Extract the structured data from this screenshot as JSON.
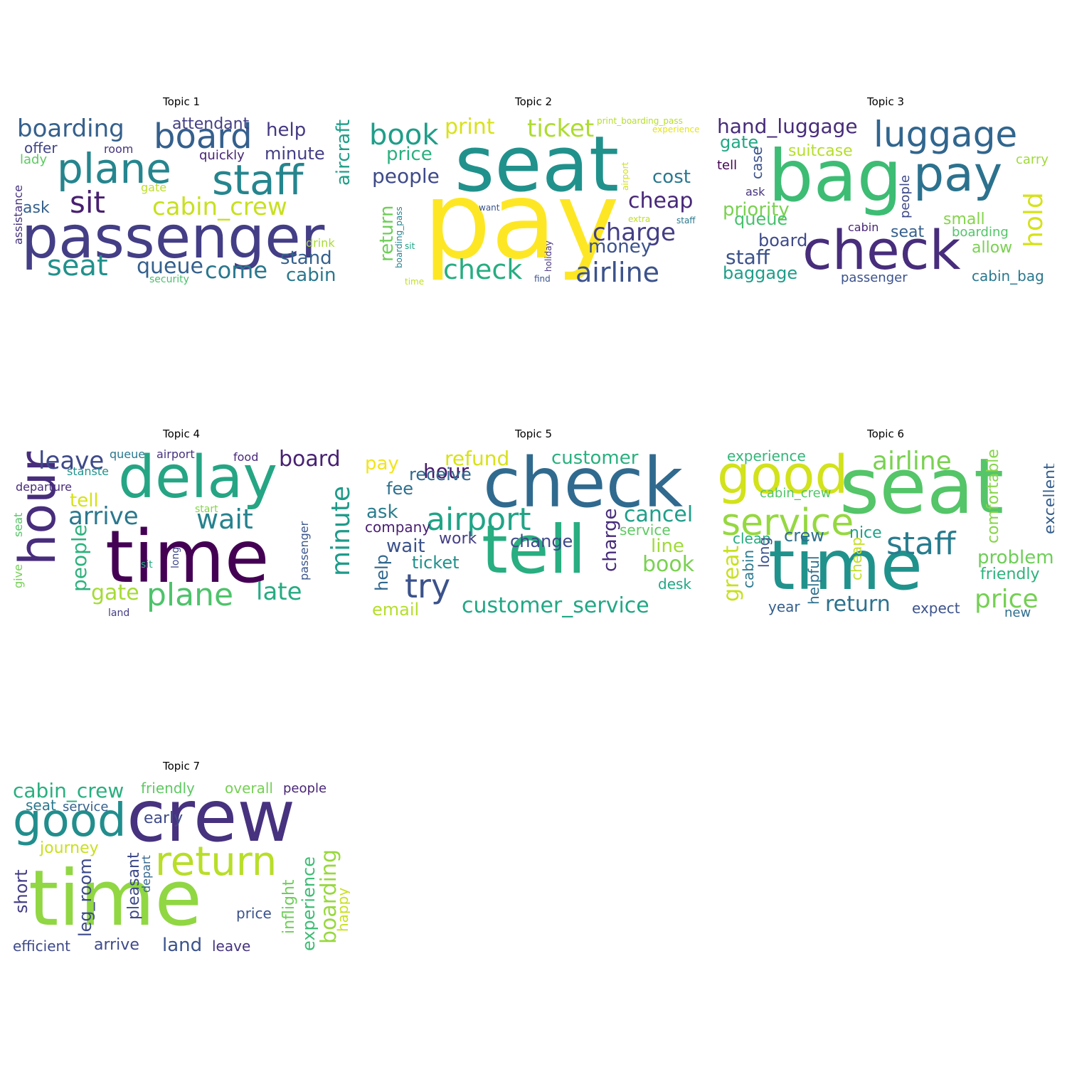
{
  "panels": [
    {
      "title": "Topic 1",
      "words": [
        {
          "text": "passenger",
          "color": "#433e85"
        },
        {
          "text": "plane",
          "color": "#25858e"
        },
        {
          "text": "staff",
          "color": "#25858e"
        },
        {
          "text": "board",
          "color": "#35608d"
        },
        {
          "text": "boarding",
          "color": "#35608d"
        },
        {
          "text": "sit",
          "color": "#481f70"
        },
        {
          "text": "cabin_crew",
          "color": "#c8e020"
        },
        {
          "text": "seat",
          "color": "#21918c"
        },
        {
          "text": "queue",
          "color": "#35608d"
        },
        {
          "text": "come",
          "color": "#2a788e"
        },
        {
          "text": "aircraft",
          "color": "#1f9e89"
        },
        {
          "text": "help",
          "color": "#443983"
        },
        {
          "text": "minute",
          "color": "#433e85"
        },
        {
          "text": "stand",
          "color": "#35608d"
        },
        {
          "text": "cabin",
          "color": "#2a788e"
        },
        {
          "text": "attendant",
          "color": "#433e85"
        },
        {
          "text": "ask",
          "color": "#35608d"
        },
        {
          "text": "offer",
          "color": "#414487"
        },
        {
          "text": "quickly",
          "color": "#482374"
        },
        {
          "text": "lady",
          "color": "#5ec962"
        },
        {
          "text": "room",
          "color": "#46337e"
        },
        {
          "text": "gate",
          "color": "#bddf26"
        },
        {
          "text": "drink",
          "color": "#a8db34"
        },
        {
          "text": "security",
          "color": "#4ac16d"
        },
        {
          "text": "assistance",
          "color": "#46337e"
        }
      ]
    },
    {
      "title": "Topic 2",
      "words": [
        {
          "text": "seat",
          "color": "#21918c"
        },
        {
          "text": "pay",
          "color": "#fde725"
        },
        {
          "text": "check",
          "color": "#26ad81"
        },
        {
          "text": "airline",
          "color": "#3b528b"
        },
        {
          "text": "book",
          "color": "#1f9e89"
        },
        {
          "text": "ticket",
          "color": "#addc30"
        },
        {
          "text": "print",
          "color": "#d8e219"
        },
        {
          "text": "price",
          "color": "#2ab07f"
        },
        {
          "text": "people",
          "color": "#3e4a89"
        },
        {
          "text": "cost",
          "color": "#2a788e"
        },
        {
          "text": "cheap",
          "color": "#482878"
        },
        {
          "text": "charge",
          "color": "#433e85"
        },
        {
          "text": "money",
          "color": "#3b528b"
        },
        {
          "text": "return",
          "color": "#6ece58"
        },
        {
          "text": "print_boarding_pass",
          "color": "#b5de2b"
        },
        {
          "text": "experience",
          "color": "#e2e418"
        },
        {
          "text": "airport",
          "color": "#d0e11c"
        },
        {
          "text": "want",
          "color": "#3b528b"
        },
        {
          "text": "extra",
          "color": "#c2df23"
        },
        {
          "text": "staff",
          "color": "#2a788e"
        },
        {
          "text": "holiday",
          "color": "#46337e"
        },
        {
          "text": "boarding_pass",
          "color": "#26828e"
        },
        {
          "text": "sit",
          "color": "#20a486"
        },
        {
          "text": "time",
          "color": "#c2df23"
        },
        {
          "text": "find",
          "color": "#3b528b"
        }
      ]
    },
    {
      "title": "Topic 3",
      "words": [
        {
          "text": "bag",
          "color": "#3dbc74"
        },
        {
          "text": "check",
          "color": "#472d7b"
        },
        {
          "text": "pay",
          "color": "#2c728e"
        },
        {
          "text": "luggage",
          "color": "#31668e"
        },
        {
          "text": "hand_luggage",
          "color": "#472c7a"
        },
        {
          "text": "hold",
          "color": "#d5e21a"
        },
        {
          "text": "priority",
          "color": "#7ad151"
        },
        {
          "text": "gate",
          "color": "#22a785"
        },
        {
          "text": "suitcase",
          "color": "#b5de2b"
        },
        {
          "text": "staff",
          "color": "#3b528b"
        },
        {
          "text": "baggage",
          "color": "#1f9e89"
        },
        {
          "text": "queue",
          "color": "#48c16e"
        },
        {
          "text": "board",
          "color": "#3e4a89"
        },
        {
          "text": "seat",
          "color": "#355f8d"
        },
        {
          "text": "small",
          "color": "#84d44b"
        },
        {
          "text": "allow",
          "color": "#7ad151"
        },
        {
          "text": "boarding",
          "color": "#52c569"
        },
        {
          "text": "cabin_bag",
          "color": "#2a788e"
        },
        {
          "text": "carry",
          "color": "#a0da39"
        },
        {
          "text": "people",
          "color": "#3e4989"
        },
        {
          "text": "case",
          "color": "#3b528b"
        },
        {
          "text": "tell",
          "color": "#440154"
        },
        {
          "text": "ask",
          "color": "#46337e"
        },
        {
          "text": "cabin",
          "color": "#482576"
        },
        {
          "text": "passenger",
          "color": "#3b528b"
        }
      ]
    },
    {
      "title": "Topic 4",
      "words": [
        {
          "text": "time",
          "color": "#440154"
        },
        {
          "text": "delay",
          "color": "#25a584"
        },
        {
          "text": "hour",
          "color": "#472d7b"
        },
        {
          "text": "plane",
          "color": "#4ec36b"
        },
        {
          "text": "minute",
          "color": "#1e9b8a"
        },
        {
          "text": "wait",
          "color": "#26828e"
        },
        {
          "text": "arrive",
          "color": "#2a788e"
        },
        {
          "text": "late",
          "color": "#25ab82"
        },
        {
          "text": "leave",
          "color": "#3e4989"
        },
        {
          "text": "board",
          "color": "#482173"
        },
        {
          "text": "gate",
          "color": "#a5db36"
        },
        {
          "text": "tell",
          "color": "#d5e21a"
        },
        {
          "text": "people",
          "color": "#2db27d"
        },
        {
          "text": "airport",
          "color": "#46327e"
        },
        {
          "text": "food",
          "color": "#482878"
        },
        {
          "text": "queue",
          "color": "#2a788e"
        },
        {
          "text": "stanste",
          "color": "#20928c"
        },
        {
          "text": "departure",
          "color": "#472a7a"
        },
        {
          "text": "start",
          "color": "#86d549"
        },
        {
          "text": "seat",
          "color": "#56c667"
        },
        {
          "text": "give",
          "color": "#75d054"
        },
        {
          "text": "sit",
          "color": "#25ac82"
        },
        {
          "text": "long",
          "color": "#3f4889"
        },
        {
          "text": "passenger",
          "color": "#3a548c"
        },
        {
          "text": "land",
          "color": "#433e85"
        }
      ]
    },
    {
      "title": "Topic 5",
      "words": [
        {
          "text": "check",
          "color": "#306a8e"
        },
        {
          "text": "tell",
          "color": "#28ae80"
        },
        {
          "text": "airport",
          "color": "#20a486"
        },
        {
          "text": "try",
          "color": "#3b528b"
        },
        {
          "text": "customer_service",
          "color": "#22a785"
        },
        {
          "text": "refund",
          "color": "#d8e219"
        },
        {
          "text": "customer",
          "color": "#2ab07f"
        },
        {
          "text": "hour",
          "color": "#481a6c"
        },
        {
          "text": "receive",
          "color": "#31688e"
        },
        {
          "text": "fee",
          "color": "#2d708e"
        },
        {
          "text": "ask",
          "color": "#287d8e"
        },
        {
          "text": "company",
          "color": "#481f70"
        },
        {
          "text": "wait",
          "color": "#3b528b"
        },
        {
          "text": "work",
          "color": "#433e85"
        },
        {
          "text": "change",
          "color": "#3e4989"
        },
        {
          "text": "ticket",
          "color": "#21918c"
        },
        {
          "text": "charge",
          "color": "#472c7a"
        },
        {
          "text": "cancel",
          "color": "#1f9e89"
        },
        {
          "text": "service",
          "color": "#5ec962"
        },
        {
          "text": "line",
          "color": "#a0da39"
        },
        {
          "text": "book",
          "color": "#7ad151"
        },
        {
          "text": "desk",
          "color": "#22a785"
        },
        {
          "text": "pay",
          "color": "#f1e51d"
        },
        {
          "text": "help",
          "color": "#31688e"
        },
        {
          "text": "email",
          "color": "#b5de2b"
        }
      ]
    },
    {
      "title": "Topic 6",
      "words": [
        {
          "text": "seat",
          "color": "#54c568"
        },
        {
          "text": "time",
          "color": "#20928c"
        },
        {
          "text": "good",
          "color": "#d2e21b"
        },
        {
          "text": "service",
          "color": "#95d840"
        },
        {
          "text": "staff",
          "color": "#287c8e"
        },
        {
          "text": "airline",
          "color": "#7ad151"
        },
        {
          "text": "return",
          "color": "#2c718e"
        },
        {
          "text": "price",
          "color": "#75d054"
        },
        {
          "text": "problem",
          "color": "#6ece58"
        },
        {
          "text": "friendly",
          "color": "#2db27d"
        },
        {
          "text": "excellent",
          "color": "#355e8d"
        },
        {
          "text": "comfortable",
          "color": "#86d549"
        },
        {
          "text": "experience",
          "color": "#34b679"
        },
        {
          "text": "cabin_crew",
          "color": "#52c569"
        },
        {
          "text": "clean",
          "color": "#26ad81"
        },
        {
          "text": "crew",
          "color": "#2e6f8e"
        },
        {
          "text": "nice",
          "color": "#1fa088"
        },
        {
          "text": "great",
          "color": "#c8e020"
        },
        {
          "text": "cabin",
          "color": "#2a788e"
        },
        {
          "text": "long",
          "color": "#3b528b"
        },
        {
          "text": "helpful",
          "color": "#2d708e"
        },
        {
          "text": "cheap",
          "color": "#c2df23"
        },
        {
          "text": "year",
          "color": "#355e8d"
        },
        {
          "text": "expect",
          "color": "#3b528b"
        },
        {
          "text": "new",
          "color": "#2e6e8e"
        }
      ]
    },
    {
      "title": "Topic 7",
      "words": [
        {
          "text": "crew",
          "color": "#46327e"
        },
        {
          "text": "time",
          "color": "#90d743"
        },
        {
          "text": "good",
          "color": "#218e8d"
        },
        {
          "text": "return",
          "color": "#b8de29"
        },
        {
          "text": "cabin_crew",
          "color": "#29af7f"
        },
        {
          "text": "friendly",
          "color": "#5ec962"
        },
        {
          "text": "overall",
          "color": "#75d054"
        },
        {
          "text": "people",
          "color": "#482576"
        },
        {
          "text": "seat",
          "color": "#2a788e"
        },
        {
          "text": "service",
          "color": "#355f8d"
        },
        {
          "text": "early",
          "color": "#3e4a89"
        },
        {
          "text": "journey",
          "color": "#c8e020"
        },
        {
          "text": "pleasant",
          "color": "#3e4a89"
        },
        {
          "text": "depart",
          "color": "#32648e"
        },
        {
          "text": "leg_room",
          "color": "#3e4a89"
        },
        {
          "text": "short",
          "color": "#433e85"
        },
        {
          "text": "price",
          "color": "#3b528b"
        },
        {
          "text": "inflight",
          "color": "#6ece58"
        },
        {
          "text": "experience",
          "color": "#3dbc74"
        },
        {
          "text": "boarding",
          "color": "#98d83e"
        },
        {
          "text": "happy",
          "color": "#c8e020"
        },
        {
          "text": "efficient",
          "color": "#3e4a89"
        },
        {
          "text": "arrive",
          "color": "#3e4a89"
        },
        {
          "text": "land",
          "color": "#3b528b"
        },
        {
          "text": "leave",
          "color": "#46337e"
        }
      ]
    }
  ]
}
